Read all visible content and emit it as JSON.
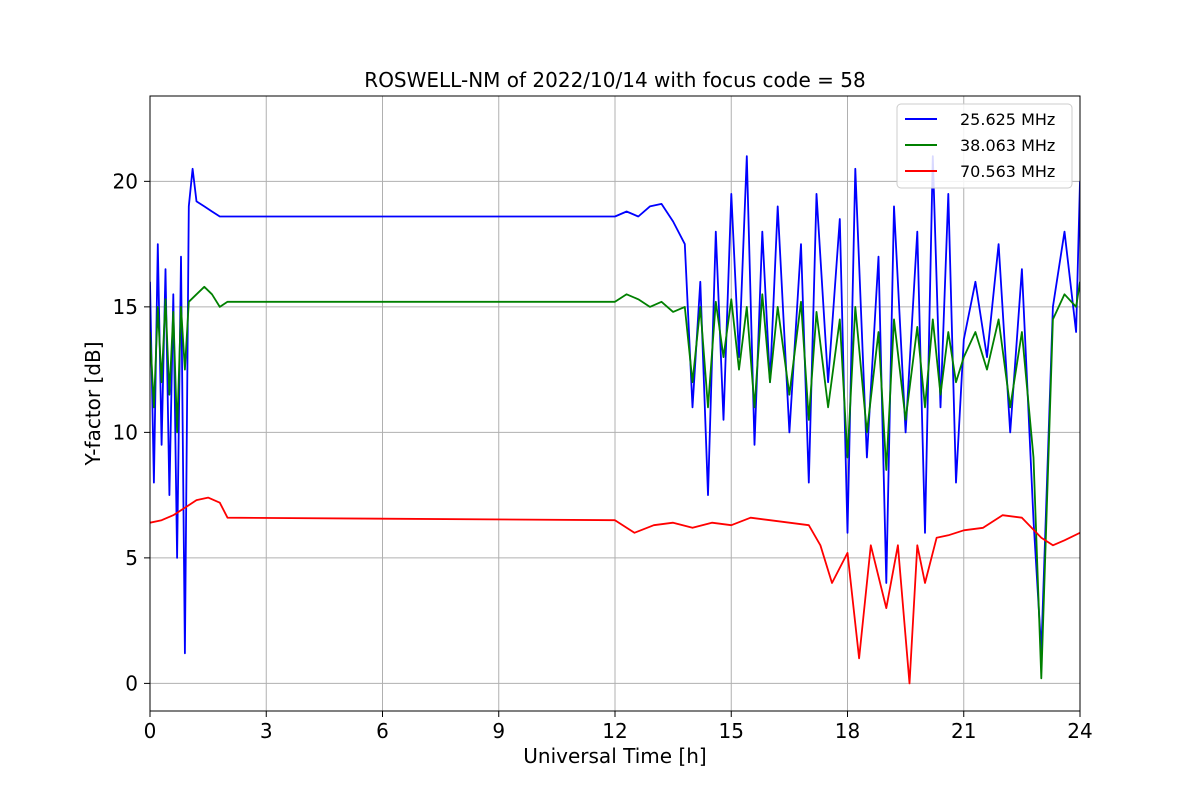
{
  "chart_data": {
    "type": "line",
    "title": "ROSWELL-NM of 2022/10/14 with focus code = 58",
    "xlabel": "Universal Time [h]",
    "ylabel": "Y-factor [dB]",
    "xlim": [
      0,
      24
    ],
    "ylim": [
      -1.1,
      23.4
    ],
    "x_ticks": [
      0,
      3,
      6,
      9,
      12,
      15,
      18,
      21,
      24
    ],
    "y_ticks": [
      0,
      5,
      10,
      15,
      20
    ],
    "grid": true,
    "legend_position": "top-right",
    "series": [
      {
        "name": "25.625 MHz",
        "color": "#0000ff",
        "x": [
          0,
          0.1,
          0.2,
          0.3,
          0.4,
          0.5,
          0.6,
          0.7,
          0.8,
          0.9,
          1.0,
          1.1,
          1.2,
          1.4,
          1.6,
          1.8,
          2.0,
          12.0,
          12.3,
          12.6,
          12.9,
          13.2,
          13.5,
          13.8,
          14.0,
          14.2,
          14.4,
          14.6,
          14.8,
          15.0,
          15.2,
          15.4,
          15.6,
          15.8,
          16.0,
          16.2,
          16.5,
          16.8,
          17.0,
          17.2,
          17.5,
          17.8,
          18.0,
          18.2,
          18.5,
          18.8,
          19.0,
          19.2,
          19.5,
          19.8,
          20.0,
          20.2,
          20.4,
          20.6,
          20.8,
          21.0,
          21.3,
          21.6,
          21.9,
          22.2,
          22.5,
          22.8,
          23.0,
          23.3,
          23.6,
          23.9,
          24.0
        ],
        "values": [
          16.0,
          8.0,
          17.5,
          9.5,
          16.5,
          7.5,
          15.5,
          5.0,
          17.0,
          1.2,
          19.0,
          20.5,
          19.2,
          19.0,
          18.8,
          18.6,
          18.6,
          18.6,
          18.8,
          18.6,
          19.0,
          19.1,
          18.4,
          17.5,
          11.0,
          16.0,
          7.5,
          18.0,
          10.5,
          19.5,
          13.0,
          21.0,
          9.5,
          18.0,
          12.0,
          19.0,
          10.0,
          17.5,
          8.0,
          19.5,
          12.0,
          18.5,
          6.0,
          20.5,
          9.0,
          17.0,
          4.0,
          19.0,
          10.0,
          18.0,
          6.0,
          21.0,
          11.0,
          19.5,
          8.0,
          13.7,
          16.0,
          13.0,
          17.5,
          10.0,
          16.5,
          6.5,
          1.3,
          15.0,
          18.0,
          14.0,
          20.0
        ]
      },
      {
        "name": "38.063 MHz",
        "color": "#008000",
        "x": [
          0,
          0.1,
          0.2,
          0.3,
          0.4,
          0.5,
          0.6,
          0.7,
          0.8,
          0.9,
          1.0,
          1.2,
          1.4,
          1.6,
          1.8,
          2.0,
          12.0,
          12.3,
          12.6,
          12.9,
          13.2,
          13.5,
          13.8,
          14.0,
          14.2,
          14.4,
          14.6,
          14.8,
          15.0,
          15.2,
          15.4,
          15.6,
          15.8,
          16.0,
          16.2,
          16.5,
          16.8,
          17.0,
          17.2,
          17.5,
          17.8,
          18.0,
          18.2,
          18.5,
          18.8,
          19.0,
          19.2,
          19.5,
          19.8,
          20.0,
          20.2,
          20.4,
          20.6,
          20.8,
          21.0,
          21.3,
          21.6,
          21.9,
          22.2,
          22.5,
          22.8,
          23.0,
          23.3,
          23.6,
          23.9,
          24.0
        ],
        "values": [
          14.0,
          11.0,
          15.0,
          12.0,
          15.3,
          11.5,
          14.8,
          10.0,
          15.0,
          12.5,
          15.2,
          15.5,
          15.8,
          15.5,
          15.0,
          15.2,
          15.2,
          15.5,
          15.3,
          15.0,
          15.2,
          14.8,
          15.0,
          12.0,
          15.0,
          11.0,
          15.2,
          13.0,
          15.3,
          12.5,
          15.0,
          11.0,
          15.5,
          12.0,
          15.0,
          11.5,
          15.2,
          10.5,
          14.8,
          11.0,
          14.5,
          9.0,
          15.0,
          10.0,
          14.0,
          8.5,
          14.5,
          10.5,
          14.2,
          11.0,
          14.5,
          11.5,
          14.0,
          12.0,
          13.0,
          14.0,
          12.5,
          14.5,
          11.0,
          14.0,
          9.0,
          0.2,
          14.5,
          15.5,
          15.0,
          16.0
        ]
      },
      {
        "name": "70.563 MHz",
        "color": "#ff0000",
        "x": [
          0,
          0.3,
          0.6,
          0.9,
          1.2,
          1.5,
          1.8,
          2.0,
          12.0,
          12.5,
          13.0,
          13.5,
          14.0,
          14.5,
          15.0,
          15.5,
          16.0,
          16.5,
          17.0,
          17.3,
          17.6,
          18.0,
          18.3,
          18.6,
          19.0,
          19.3,
          19.6,
          19.8,
          20.0,
          20.3,
          20.6,
          21.0,
          21.5,
          22.0,
          22.5,
          23.0,
          23.3,
          23.6,
          24.0
        ],
        "values": [
          6.4,
          6.5,
          6.7,
          7.0,
          7.3,
          7.4,
          7.2,
          6.6,
          6.5,
          6.0,
          6.3,
          6.4,
          6.2,
          6.4,
          6.3,
          6.6,
          6.5,
          6.4,
          6.3,
          5.5,
          4.0,
          5.2,
          1.0,
          5.5,
          3.0,
          5.5,
          0.0,
          5.5,
          4.0,
          5.8,
          5.9,
          6.1,
          6.2,
          6.7,
          6.6,
          5.8,
          5.5,
          5.7,
          6.0
        ]
      }
    ]
  }
}
